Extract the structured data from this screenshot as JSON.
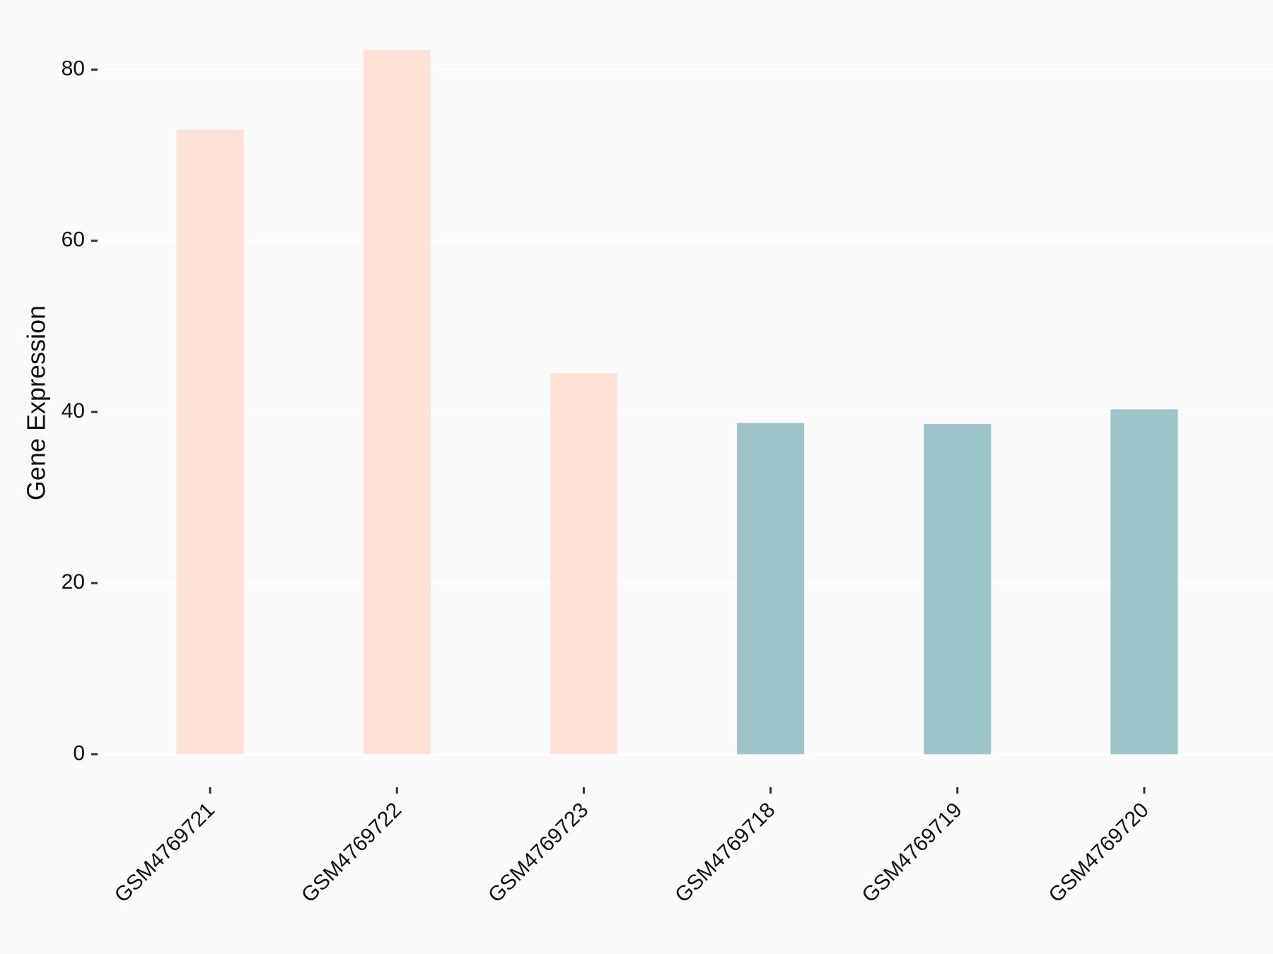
{
  "chart_data": {
    "type": "bar",
    "y_label": "Gene Expression",
    "categories": [
      "GSM4769721",
      "GSM4769722",
      "GSM4769723",
      "GSM4769718",
      "GSM4769719",
      "GSM4769720"
    ],
    "values": [
      73.0,
      82.3,
      44.5,
      38.7,
      38.6,
      40.3
    ],
    "colors": [
      "#ffe1d7",
      "#ffe1d7",
      "#ffe1d7",
      "#9dc4c8",
      "#9dc4c8",
      "#9dc4c8"
    ],
    "ylim": [
      -4.1,
      86.4
    ],
    "yticks": [
      0,
      20,
      40,
      60,
      80
    ],
    "grid": true
  }
}
